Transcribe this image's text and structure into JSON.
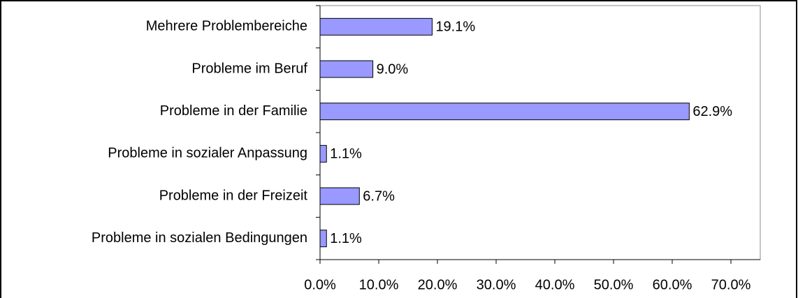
{
  "chart_data": {
    "type": "bar",
    "orientation": "horizontal",
    "categories": [
      "Mehrere Problembereiche",
      "Probleme im Beruf",
      "Probleme in der Familie",
      "Probleme in sozialer Anpassung",
      "Probleme in der Freizeit",
      "Probleme in sozialen Bedingungen"
    ],
    "values": [
      19.1,
      9.0,
      62.9,
      1.1,
      6.7,
      1.1
    ],
    "value_labels": [
      "19.1%",
      "9.0%",
      "62.9%",
      "1.1%",
      "6.7%",
      "1.1%"
    ],
    "color": "#9999ff",
    "xlim": [
      0,
      75
    ],
    "xticks": [
      {
        "value": 0,
        "label": "0.0%"
      },
      {
        "value": 10,
        "label": "10.0%"
      },
      {
        "value": 20,
        "label": "20.0%"
      },
      {
        "value": 30,
        "label": "30.0%"
      },
      {
        "value": 40,
        "label": "40.0%"
      },
      {
        "value": 50,
        "label": "50.0%"
      },
      {
        "value": 60,
        "label": "60.0%"
      },
      {
        "value": 70,
        "label": "70.0%"
      }
    ],
    "grid": false
  }
}
